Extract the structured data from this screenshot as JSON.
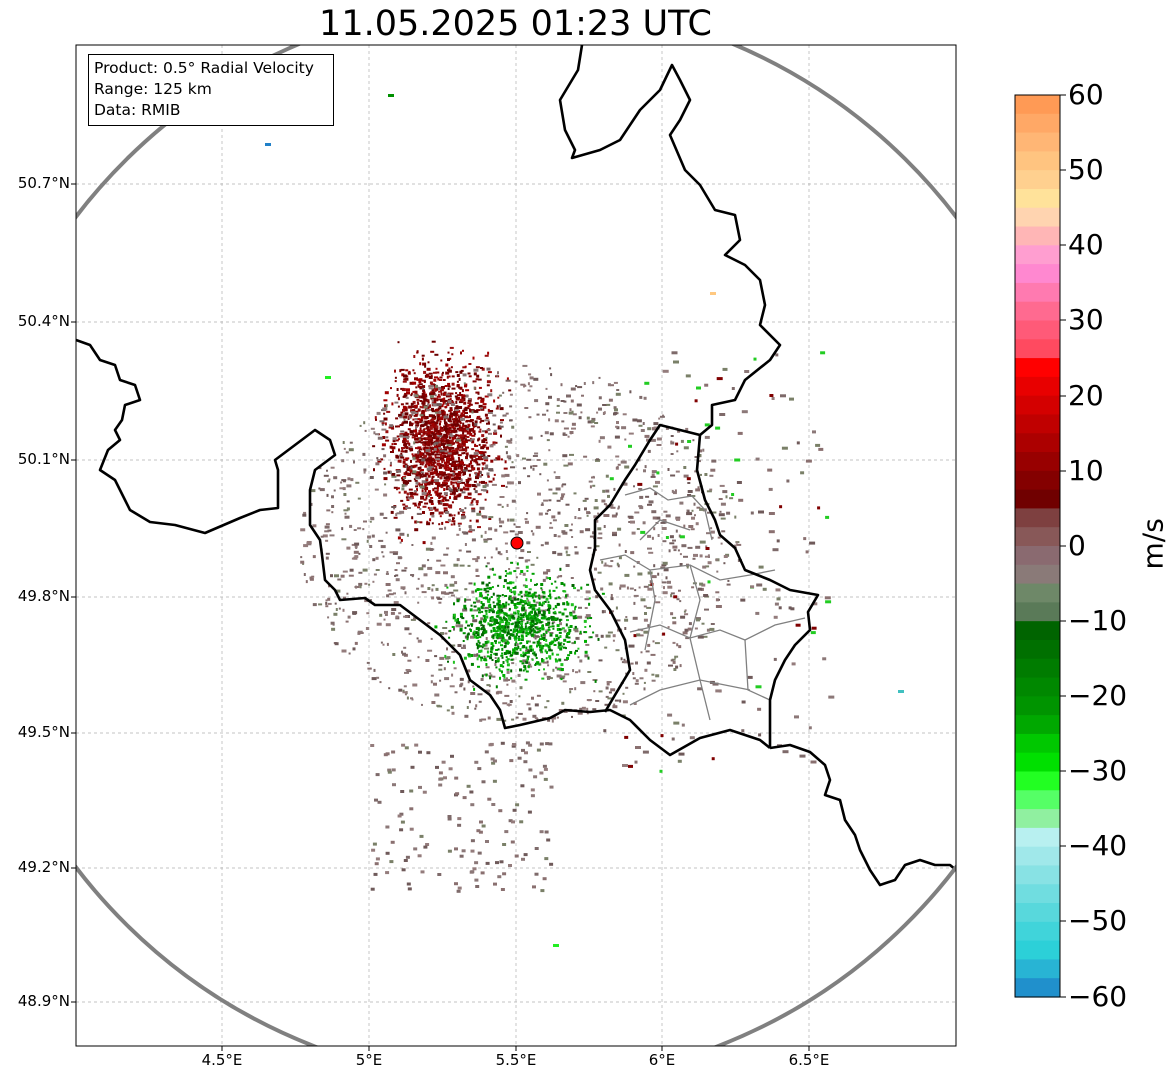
{
  "title": "11.05.2025 01:23 UTC",
  "info": {
    "product": "Product: 0.5° Radial Velocity",
    "range": "Range: 125 km",
    "source": "Data: RMIB"
  },
  "lat_labels": [
    "50.7°N",
    "50.4°N",
    "50.1°N",
    "49.8°N",
    "49.5°N",
    "49.2°N",
    "48.9°N"
  ],
  "lon_labels": [
    "4.5°E",
    "5°E",
    "5.5°E",
    "6°E",
    "6.5°E"
  ],
  "colorbar": {
    "label": "m/s",
    "ticks": [
      "60",
      "50",
      "40",
      "30",
      "20",
      "10",
      "0",
      "−10",
      "−20",
      "−30",
      "−40",
      "−50",
      "−60"
    ],
    "range": [
      -60,
      60
    ]
  },
  "radar": {
    "lon": 5.5,
    "lat": 49.914,
    "range_km": 125
  },
  "colors": {
    "border": "#000000",
    "range_ring": "#808080",
    "radar_site": "#ff0000",
    "inbound_green": "#009000",
    "outbound_red": "#800000",
    "near_zero": "#8a7070"
  }
}
